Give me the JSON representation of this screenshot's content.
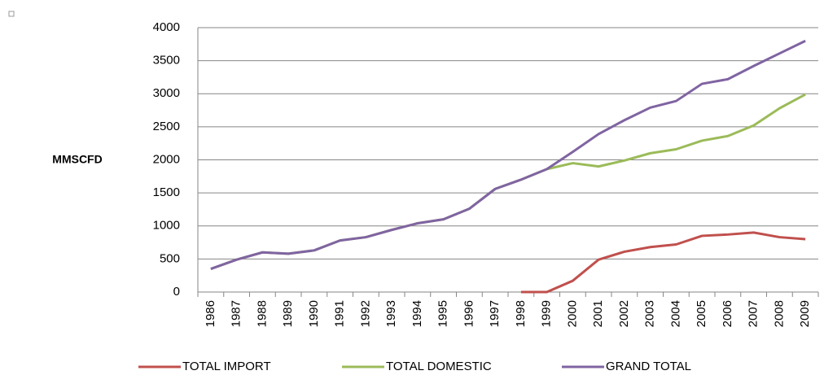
{
  "chart_data": {
    "type": "line",
    "y_label": "MMSCFD",
    "categories": [
      "1986",
      "1987",
      "1988",
      "1989",
      "1990",
      "1991",
      "1992",
      "1993",
      "1994",
      "1995",
      "1996",
      "1997",
      "1998",
      "1999",
      "2000",
      "2001",
      "2002",
      "2003",
      "2004",
      "2005",
      "2006",
      "2007",
      "2008",
      "2009"
    ],
    "series": [
      {
        "name": "TOTAL IMPORT",
        "color": "#c0504d",
        "values": [
          null,
          null,
          null,
          null,
          null,
          null,
          null,
          null,
          null,
          null,
          null,
          null,
          0,
          0,
          170,
          490,
          610,
          680,
          720,
          850,
          870,
          900,
          830,
          800
        ]
      },
      {
        "name": "TOTAL DOMESTIC",
        "color": "#9bbb59",
        "values": [
          350,
          490,
          600,
          580,
          630,
          780,
          830,
          940,
          1040,
          1100,
          1260,
          1560,
          1700,
          1860,
          1950,
          1900,
          1990,
          2100,
          2160,
          2290,
          2360,
          2520,
          2780,
          2990
        ]
      },
      {
        "name": "GRAND TOTAL",
        "color": "#8064a2",
        "values": [
          350,
          490,
          600,
          580,
          630,
          780,
          830,
          940,
          1040,
          1100,
          1260,
          1560,
          1700,
          1860,
          2120,
          2390,
          2600,
          2790,
          2890,
          3150,
          3220,
          3420,
          3610,
          3800
        ]
      }
    ],
    "ylim": [
      0,
      4000
    ],
    "yticks": [
      0,
      500,
      1000,
      1500,
      2000,
      2500,
      3000,
      3500,
      4000
    ],
    "grid": true,
    "legend": "bottom"
  }
}
